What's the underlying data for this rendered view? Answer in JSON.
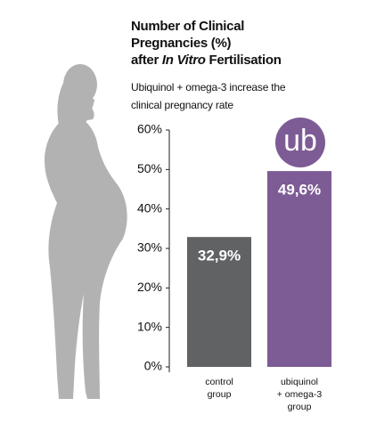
{
  "chart_data": {
    "type": "bar",
    "title": [
      "Number of Clinical",
      "Pregnancies (%)",
      "after",
      "In Vitro",
      "Fertilisation"
    ],
    "subtitle": [
      "Ubiquinol + omega-3 increase the",
      "clinical pregnancy rate"
    ],
    "logo": "ub",
    "categories": [
      "control\ngroup",
      "ubiquinol\n+ omega-3\ngroup"
    ],
    "values": [
      32.9,
      49.6
    ],
    "value_labels": [
      "32,9%",
      "49,6%"
    ],
    "colors": [
      "#616264",
      "#7d5b95"
    ],
    "ylim": [
      0,
      60
    ],
    "yticks": [
      {
        "value": 0,
        "label": "0%"
      },
      {
        "value": 10,
        "label": "10%"
      },
      {
        "value": 20,
        "label": "20%"
      },
      {
        "value": 30,
        "label": "30%"
      },
      {
        "value": 40,
        "label": "40%"
      },
      {
        "value": 50,
        "label": "50%"
      },
      {
        "value": 60,
        "label": "60%"
      }
    ]
  }
}
